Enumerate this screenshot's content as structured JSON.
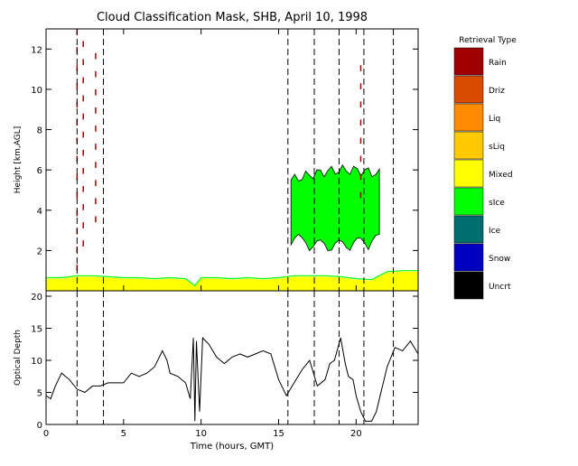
{
  "title": "Cloud Classification Mask, SHB, April 10, 1998",
  "legend_title": "Retrieval Type",
  "legend": [
    {
      "label": "Rain",
      "color": "#a00000"
    },
    {
      "label": "Driz",
      "color": "#d84c00"
    },
    {
      "label": "Liq",
      "color": "#ff8c00"
    },
    {
      "label": "sLiq",
      "color": "#ffc800"
    },
    {
      "label": "Mixed",
      "color": "#ffff00"
    },
    {
      "label": "sIce",
      "color": "#00ff00"
    },
    {
      "label": "Ice",
      "color": "#006e6e"
    },
    {
      "label": "Snow",
      "color": "#0000c0"
    },
    {
      "label": "Uncrt",
      "color": "#000000"
    }
  ],
  "chart_data": [
    {
      "type": "heatmap",
      "title": "Cloud Classification Mask, SHB, April 10, 1998",
      "ylabel": "Height [km,AGL]",
      "xlim": [
        0,
        24
      ],
      "ylim": [
        0,
        13
      ],
      "yticks": [
        2,
        4,
        6,
        8,
        10,
        12
      ],
      "ytick_labels": [
        "2",
        "4",
        "6",
        "8",
        "10",
        "12"
      ],
      "vlines": [
        2.0,
        3.7,
        15.6,
        17.3,
        18.9,
        20.5,
        22.4
      ],
      "mixed_layer": {
        "class": "Mixed",
        "x": [
          0,
          1,
          2,
          3,
          4,
          5,
          6,
          7,
          8,
          9,
          9.6,
          10,
          11,
          12,
          13,
          14,
          15,
          16,
          17,
          18,
          19,
          20,
          21,
          22,
          23,
          24
        ],
        "top_km": [
          0.6,
          0.6,
          0.7,
          0.7,
          0.65,
          0.6,
          0.6,
          0.55,
          0.6,
          0.55,
          0.2,
          0.6,
          0.6,
          0.55,
          0.6,
          0.55,
          0.6,
          0.7,
          0.7,
          0.7,
          0.65,
          0.55,
          0.5,
          0.9,
          0.95,
          0.95
        ]
      },
      "ice_cloud": {
        "class": "sIce",
        "x_range": [
          15.8,
          21.5
        ],
        "base_km": [
          1.8,
          2.5
        ],
        "top_km": [
          5.5,
          6.0
        ]
      },
      "rain_streaks": {
        "class": "Rain",
        "x": [
          2.0,
          2.4,
          3.2,
          20.3
        ],
        "height_range_km": [
          1.0,
          12.9
        ]
      }
    },
    {
      "type": "line",
      "xlabel": "Time (hours, GMT)",
      "ylabel": "Optical Depth",
      "xlim": [
        0,
        24
      ],
      "ylim": [
        0,
        20
      ],
      "xticks": [
        0,
        5,
        10,
        15,
        20
      ],
      "xtick_labels": [
        "0",
        "5",
        "10",
        "15",
        "20"
      ],
      "yticks": [
        0,
        5,
        10,
        15,
        20
      ],
      "ytick_labels": [
        "0",
        "5",
        "10",
        "15",
        "20"
      ],
      "vlines": [
        2.0,
        3.7,
        15.6,
        17.3,
        18.9,
        20.5,
        22.4
      ],
      "x": [
        0,
        0.3,
        0.6,
        1.0,
        1.5,
        2.0,
        2.5,
        3.0,
        3.5,
        4.0,
        4.5,
        5.0,
        5.5,
        6.0,
        6.5,
        7.0,
        7.5,
        7.8,
        8.0,
        8.5,
        9.0,
        9.3,
        9.5,
        9.6,
        9.7,
        9.9,
        10.1,
        10.5,
        11.0,
        11.5,
        12.0,
        12.5,
        13.0,
        13.5,
        14.0,
        14.5,
        15.0,
        15.5,
        16.0,
        16.5,
        17.0,
        17.5,
        18.0,
        18.3,
        18.6,
        19.0,
        19.3,
        19.5,
        19.8,
        20.0,
        20.3,
        20.6,
        21.0,
        21.3,
        21.6,
        22.0,
        22.5,
        23.0,
        23.5,
        24.0
      ],
      "y": [
        4.5,
        4.0,
        6.0,
        8.0,
        7.0,
        5.5,
        5.0,
        6.0,
        6.0,
        6.5,
        6.5,
        6.5,
        8.0,
        7.5,
        8.0,
        9.0,
        11.5,
        10.0,
        8.0,
        7.5,
        6.5,
        4.0,
        13.5,
        0.5,
        13.0,
        2.0,
        13.5,
        12.5,
        10.5,
        9.5,
        10.5,
        11.0,
        10.5,
        11.0,
        11.5,
        11.0,
        7.0,
        4.5,
        6.5,
        8.5,
        10.0,
        6.0,
        7.0,
        9.5,
        10.0,
        13.5,
        9.5,
        7.5,
        7.0,
        4.5,
        2.0,
        0.5,
        0.5,
        2.0,
        5.0,
        9.0,
        12.0,
        11.5,
        13.0,
        11.0
      ]
    }
  ]
}
